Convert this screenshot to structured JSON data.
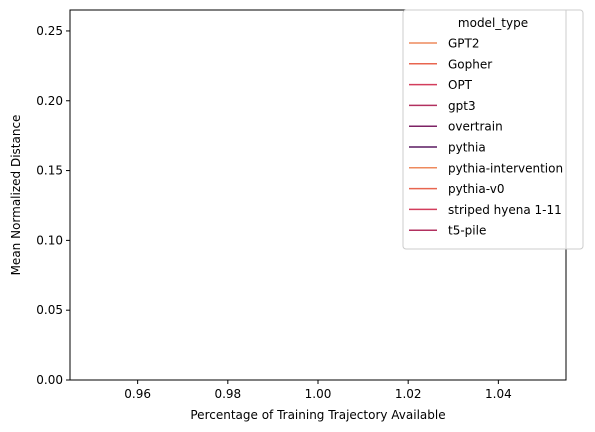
{
  "chart_data": {
    "type": "line",
    "title": "",
    "xlabel": "Percentage of Training Trajectory Available",
    "ylabel": "Mean Normalized Distance",
    "xlim": [
      0.945,
      1.055
    ],
    "ylim": [
      0.0,
      0.265
    ],
    "xticks": [
      "0.96",
      "0.98",
      "1.00",
      "1.02",
      "1.04"
    ],
    "yticks": [
      "0.00",
      "0.05",
      "0.10",
      "0.15",
      "0.20",
      "0.25"
    ],
    "grid": false,
    "legend": {
      "title": "model_type",
      "position": "top-right",
      "entries": [
        {
          "name": "GPT2",
          "color": "#ee8a5d"
        },
        {
          "name": "Gopher",
          "color": "#e8654f"
        },
        {
          "name": "OPT",
          "color": "#d33d5c"
        },
        {
          "name": "gpt3",
          "color": "#b2305f"
        },
        {
          "name": "overtrain",
          "color": "#7d2264"
        },
        {
          "name": "pythia",
          "color": "#5a1a60"
        },
        {
          "name": "pythia-intervention",
          "color": "#ee8a5d"
        },
        {
          "name": "pythia-v0",
          "color": "#e8654f"
        },
        {
          "name": "striped hyena 1-11",
          "color": "#d33d5c"
        },
        {
          "name": "t5-pile",
          "color": "#b2305f"
        }
      ]
    },
    "series": [
      {
        "name": "GPT2",
        "x": [],
        "y": []
      },
      {
        "name": "Gopher",
        "x": [],
        "y": []
      },
      {
        "name": "OPT",
        "x": [],
        "y": []
      },
      {
        "name": "gpt3",
        "x": [],
        "y": []
      },
      {
        "name": "overtrain",
        "x": [],
        "y": []
      },
      {
        "name": "pythia",
        "x": [],
        "y": []
      },
      {
        "name": "pythia-intervention",
        "x": [],
        "y": []
      },
      {
        "name": "pythia-v0",
        "x": [],
        "y": []
      },
      {
        "name": "striped hyena 1-11",
        "x": [],
        "y": []
      },
      {
        "name": "t5-pile",
        "x": [],
        "y": []
      }
    ]
  }
}
